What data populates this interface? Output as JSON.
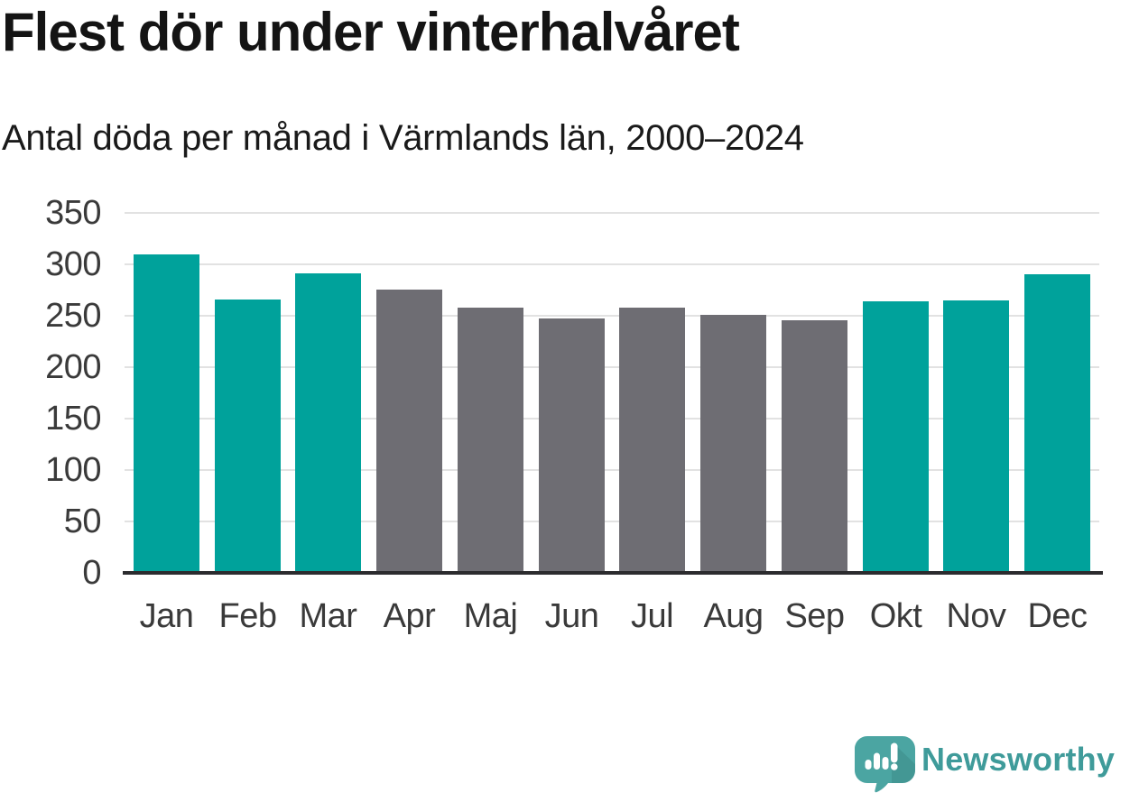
{
  "header": {
    "title": "Flest dör under vinterhalvåret",
    "subtitle": "Antal döda per månad i Värmlands län, 2000–2024"
  },
  "chart_data": {
    "type": "bar",
    "title": "Flest dör under vinterhalvåret",
    "subtitle": "Antal döda per månad i Värmlands län, 2000–2024",
    "categories": [
      "Jan",
      "Feb",
      "Mar",
      "Apr",
      "Maj",
      "Jun",
      "Jul",
      "Aug",
      "Sep",
      "Okt",
      "Nov",
      "Dec"
    ],
    "values": [
      310,
      266,
      291,
      275,
      258,
      247,
      258,
      251,
      246,
      264,
      265,
      290
    ],
    "highlight_indexes": [
      0,
      1,
      2,
      9,
      10,
      11
    ],
    "colors": {
      "highlight": "#00a29b",
      "base": "#6e6d73",
      "gridline": "#e2e2e2",
      "axis": "#2b2b2e",
      "tick_text": "#3a3a3a"
    },
    "xlabel": "",
    "ylabel": "",
    "ylim": [
      0,
      350
    ],
    "yticks": [
      0,
      50,
      100,
      150,
      200,
      250,
      300,
      350
    ],
    "grid": "horizontal-only",
    "legend": "none"
  },
  "branding": {
    "logo_text": "Newsworthy",
    "logo_text_color": "#3f9b9a",
    "logo_mark_color": "#4BA5A2"
  }
}
